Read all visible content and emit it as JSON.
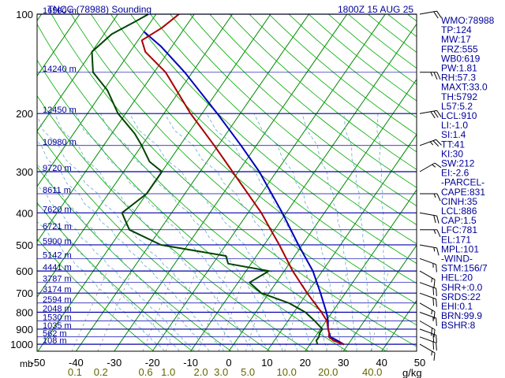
{
  "chart_data": {
    "type": "skew-t",
    "title": "TNCC (78988) Sounding",
    "valid_time": "1800Z 15 AUG 25",
    "colors": {
      "temperature": "#aa0000",
      "dewpoint": "#004400",
      "parcel": "#0000bb",
      "isobar": "#0000aa",
      "isotherm": "#008800",
      "dry_adiabat": "#00aa00",
      "moist_adiabat": "#66aacc",
      "mixing_ratio": "#999999",
      "text_blue": "#000099",
      "text_olive": "#666600"
    },
    "pressure_levels": [
      100,
      200,
      300,
      400,
      500,
      600,
      700,
      800,
      900,
      1000
    ],
    "pressure_label_unit": "mb",
    "height_labels": [
      {
        "p": 100,
        "label": "16590 m"
      },
      {
        "p": 150,
        "label": "14240 m"
      },
      {
        "p": 200,
        "label": "12450 m"
      },
      {
        "p": 250,
        "label": "10980 m"
      },
      {
        "p": 300,
        "label": "9720 m"
      },
      {
        "p": 350,
        "label": "8611 m"
      },
      {
        "p": 400,
        "label": "7620 m"
      },
      {
        "p": 450,
        "label": "6721 m"
      },
      {
        "p": 500,
        "label": "5900 m"
      },
      {
        "p": 550,
        "label": "5142 m"
      },
      {
        "p": 600,
        "label": "4441 m"
      },
      {
        "p": 650,
        "label": "3787 m"
      },
      {
        "p": 700,
        "label": "3174 m"
      },
      {
        "p": 750,
        "label": "2594 m"
      },
      {
        "p": 800,
        "label": "2048 m"
      },
      {
        "p": 850,
        "label": "1530 m"
      },
      {
        "p": 900,
        "label": "1035 m"
      },
      {
        "p": 950,
        "label": "562 m"
      },
      {
        "p": 1000,
        "label": "108 m"
      }
    ],
    "temperature_ticks": [
      -50,
      -40,
      -30,
      -20,
      -10,
      0,
      10,
      20,
      30,
      40,
      50
    ],
    "temperature_tick_labels": [
      "-50",
      "-40",
      "-30",
      "-20",
      "-10",
      "0",
      "10",
      "20",
      "30",
      "40",
      "50"
    ],
    "mixing_ratio_values": [
      0.1,
      0.2,
      0.6,
      1.0,
      2.0,
      3.0,
      5.0,
      10.0,
      20.0,
      40.0
    ],
    "mixing_ratio_labels": [
      "0.1",
      "0.2",
      "0.6",
      "1.0",
      "2.0",
      "3.0",
      "5.0",
      "10.0",
      "20.0",
      "40.0"
    ],
    "mixing_ratio_unit": "g/kg",
    "temperature_profile": [
      {
        "p": 1002,
        "t": 29.0
      },
      {
        "p": 975,
        "t": 25.5
      },
      {
        "p": 950,
        "t": 23.6
      },
      {
        "p": 925,
        "t": 23.0
      },
      {
        "p": 900,
        "t": 22.0
      },
      {
        "p": 850,
        "t": 20.2
      },
      {
        "p": 800,
        "t": 17.2
      },
      {
        "p": 700,
        "t": 10.0
      },
      {
        "p": 600,
        "t": 2.2
      },
      {
        "p": 500,
        "t": -6.0
      },
      {
        "p": 450,
        "t": -11.0
      },
      {
        "p": 400,
        "t": -16.5
      },
      {
        "p": 300,
        "t": -31.5
      },
      {
        "p": 250,
        "t": -41.0
      },
      {
        "p": 200,
        "t": -53.0
      },
      {
        "p": 150,
        "t": -67.0
      },
      {
        "p": 130,
        "t": -76.0
      },
      {
        "p": 120,
        "t": -79.0
      },
      {
        "p": 110,
        "t": -76.0
      },
      {
        "p": 100,
        "t": -74.0
      },
      {
        "p": 96,
        "t": -72.0
      }
    ],
    "dewpoint_profile": [
      {
        "p": 1002,
        "t": 22.0
      },
      {
        "p": 975,
        "t": 21.0
      },
      {
        "p": 950,
        "t": 21.0
      },
      {
        "p": 925,
        "t": 20.5
      },
      {
        "p": 900,
        "t": 20.5
      },
      {
        "p": 850,
        "t": 17.0
      },
      {
        "p": 800,
        "t": 13.0
      },
      {
        "p": 750,
        "t": 7.0
      },
      {
        "p": 700,
        "t": -2.0
      },
      {
        "p": 650,
        "t": -7.0
      },
      {
        "p": 600,
        "t": -4.0
      },
      {
        "p": 570,
        "t": -16.0
      },
      {
        "p": 540,
        "t": -18.0
      },
      {
        "p": 500,
        "t": -37.0
      },
      {
        "p": 450,
        "t": -48.0
      },
      {
        "p": 400,
        "t": -53.0
      },
      {
        "p": 350,
        "t": -50.0
      },
      {
        "p": 300,
        "t": -50.0
      },
      {
        "p": 280,
        "t": -55.0
      },
      {
        "p": 250,
        "t": -60.0
      },
      {
        "p": 230,
        "t": -64.0
      },
      {
        "p": 200,
        "t": -72.0
      },
      {
        "p": 170,
        "t": -79.0
      },
      {
        "p": 150,
        "t": -86.0
      },
      {
        "p": 130,
        "t": -90.0
      },
      {
        "p": 115,
        "t": -88.0
      },
      {
        "p": 105,
        "t": -84.0
      },
      {
        "p": 100,
        "t": -82.0
      }
    ],
    "parcel_profile": [
      {
        "p": 1002,
        "t": 29.0
      },
      {
        "p": 975,
        "t": 26.5
      },
      {
        "p": 950,
        "t": 24.0
      },
      {
        "p": 925,
        "t": 23.0
      },
      {
        "p": 900,
        "t": 22.0
      },
      {
        "p": 850,
        "t": 20.5
      },
      {
        "p": 800,
        "t": 18.5
      },
      {
        "p": 700,
        "t": 13.5
      },
      {
        "p": 600,
        "t": 7.5
      },
      {
        "p": 500,
        "t": -1.0
      },
      {
        "p": 400,
        "t": -11.0
      },
      {
        "p": 300,
        "t": -24.5
      },
      {
        "p": 250,
        "t": -34.0
      },
      {
        "p": 200,
        "t": -46.0
      },
      {
        "p": 150,
        "t": -62.0
      },
      {
        "p": 125,
        "t": -73.0
      },
      {
        "p": 113,
        "t": -80.0
      }
    ],
    "wind_barbs": [
      {
        "p": 100,
        "dir": 80,
        "spd": 20
      },
      {
        "p": 150,
        "dir": 90,
        "spd": 25
      },
      {
        "p": 200,
        "dir": 80,
        "spd": 30
      },
      {
        "p": 250,
        "dir": 70,
        "spd": 25
      },
      {
        "p": 300,
        "dir": 60,
        "spd": 15
      },
      {
        "p": 350,
        "dir": 90,
        "spd": 15
      },
      {
        "p": 400,
        "dir": 100,
        "spd": 20
      },
      {
        "p": 450,
        "dir": 90,
        "spd": 15
      },
      {
        "p": 500,
        "dir": 100,
        "spd": 15
      },
      {
        "p": 550,
        "dir": 110,
        "spd": 15
      },
      {
        "p": 600,
        "dir": 120,
        "spd": 15
      },
      {
        "p": 650,
        "dir": 110,
        "spd": 20
      },
      {
        "p": 700,
        "dir": 110,
        "spd": 20
      },
      {
        "p": 750,
        "dir": 120,
        "spd": 15
      },
      {
        "p": 800,
        "dir": 110,
        "spd": 15
      },
      {
        "p": 850,
        "dir": 120,
        "spd": 20
      },
      {
        "p": 900,
        "dir": 110,
        "spd": 20
      },
      {
        "p": 950,
        "dir": 110,
        "spd": 20
      },
      {
        "p": 1000,
        "dir": 120,
        "spd": 15
      }
    ],
    "indices": [
      "WMO:78988",
      "TP:124",
      "MW:17",
      "FRZ:555",
      "WB0:619",
      "PW:1.81",
      "RH:57.3",
      "MAXT:33.0",
      "TH:5792",
      "L57:5.2",
      "LCL:910",
      "LI:-1.0",
      "SI:1.4",
      "TT:41",
      "KI:30",
      "SW:212",
      "EI:-2.6",
      "-PARCEL-",
      "CAPE:831",
      "CINH:35",
      "LCL:886",
      "CAP:1.5",
      "LFC:781",
      "EL:171",
      "MPL:101",
      "-WIND-",
      "STM:156/7",
      "HEL:20",
      "SHR+:0.0",
      "SRDS:22",
      "EHI:0.1",
      "BRN:99.9",
      "BSHR:8"
    ]
  }
}
